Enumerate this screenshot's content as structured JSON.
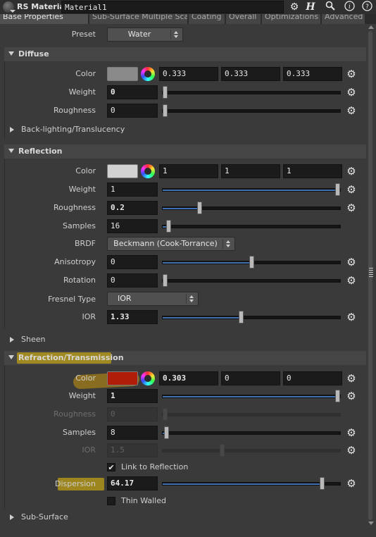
{
  "header": {
    "node_type": "RS Material",
    "node_name": "Material1",
    "icons": [
      "gear-icon",
      "houdini-help-icon",
      "search-icon",
      "info-icon",
      "help-icon"
    ]
  },
  "tabs": [
    {
      "label": "Base Properties"
    },
    {
      "label": "Sub-Surface Multiple Scatter..."
    },
    {
      "label": "Coating"
    },
    {
      "label": "Overall"
    },
    {
      "label": "Optimizations"
    },
    {
      "label": "Advanced"
    }
  ],
  "preset": {
    "label": "Preset",
    "value": "Water"
  },
  "diffuse": {
    "title": "Diffuse",
    "color": {
      "label": "Color",
      "swatch": "#8a8a8a",
      "r": "0.333",
      "g": "0.333",
      "b": "0.333"
    },
    "weight": {
      "label": "Weight",
      "value": "0",
      "slider": 0.0
    },
    "roughness": {
      "label": "Roughness",
      "value": "0",
      "slider": 0.0
    },
    "backlighting": "Back-lighting/Translucency"
  },
  "reflection": {
    "title": "Reflection",
    "color": {
      "label": "Color",
      "swatch": "#d2d2d2",
      "r": "1",
      "g": "1",
      "b": "1"
    },
    "weight": {
      "label": "Weight",
      "value": "1",
      "slider": 1.0
    },
    "roughness": {
      "label": "Roughness",
      "value": "0.2",
      "slider": 0.2
    },
    "samples": {
      "label": "Samples",
      "value": "16",
      "slider": 0.02
    },
    "brdf": {
      "label": "BRDF",
      "value": "Beckmann (Cook-Torrance)"
    },
    "anisotropy": {
      "label": "Anisotropy",
      "value": "0",
      "slider": 0.5
    },
    "rotation": {
      "label": "Rotation",
      "value": "0",
      "slider": 0.0
    },
    "fresnel": {
      "label": "Fresnel Type",
      "value": "IOR"
    },
    "ior": {
      "label": "IOR",
      "value": "1.33",
      "slider": 0.44
    }
  },
  "sheen": {
    "title": "Sheen"
  },
  "refraction": {
    "title": "Refraction/Transmission",
    "color": {
      "label": "Color",
      "swatch": "#b01e0a",
      "r": "0.303",
      "g": "0",
      "b": "0"
    },
    "weight": {
      "label": "Weight",
      "value": "1",
      "slider": 1.0
    },
    "roughness": {
      "label": "Roughness",
      "value": "0",
      "slider": 0.0
    },
    "samples": {
      "label": "Samples",
      "value": "8",
      "slider": 0.01
    },
    "ior": {
      "label": "IOR",
      "value": "1.5",
      "slider": 0.33
    },
    "link": {
      "label": "Link to Reflection",
      "checked": true
    },
    "dispersion": {
      "label": "Dispersion",
      "value": "64.17",
      "slider": 0.91
    },
    "thin": {
      "label": "Thin Walled",
      "checked": false
    }
  },
  "subsurface": {
    "title": "Sub-Surface"
  },
  "colors": {
    "accent": "#3f6fb0",
    "highlight": "#c9a318"
  }
}
